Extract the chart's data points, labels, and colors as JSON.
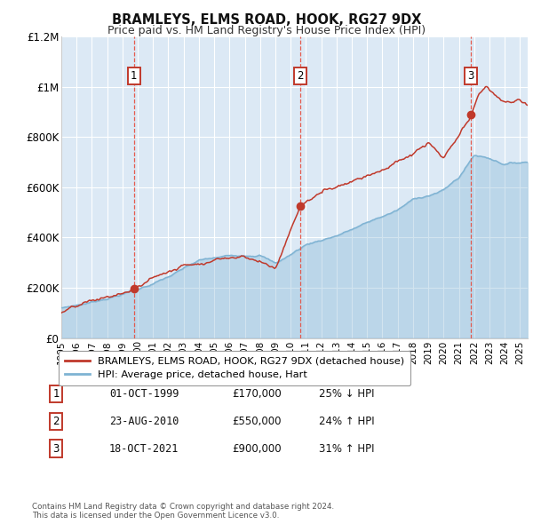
{
  "title": "BRAMLEYS, ELMS ROAD, HOOK, RG27 9DX",
  "subtitle": "Price paid vs. HM Land Registry's House Price Index (HPI)",
  "ylim": [
    0,
    1200000
  ],
  "yticks": [
    0,
    200000,
    400000,
    600000,
    800000,
    1000000,
    1200000
  ],
  "ytick_labels": [
    "£0",
    "£200K",
    "£400K",
    "£600K",
    "£800K",
    "£1M",
    "£1.2M"
  ],
  "background_color": "#ffffff",
  "plot_bg_color": "#dce9f5",
  "grid_color": "#ffffff",
  "sale_color": "#c0392b",
  "hpi_color": "#7fb3d3",
  "sale_label": "BRAMLEYS, ELMS ROAD, HOOK, RG27 9DX (detached house)",
  "hpi_label": "HPI: Average price, detached house, Hart",
  "transactions": [
    {
      "num": 1,
      "date": "01-OCT-1999",
      "price": 170000,
      "pct": "25%",
      "dir": "↓",
      "year_x": 1999.75
    },
    {
      "num": 2,
      "date": "23-AUG-2010",
      "price": 550000,
      "pct": "24%",
      "dir": "↑",
      "year_x": 2010.64
    },
    {
      "num": 3,
      "date": "18-OCT-2021",
      "price": 900000,
      "pct": "31%",
      "dir": "↑",
      "year_x": 2021.79
    }
  ],
  "footer": "Contains HM Land Registry data © Crown copyright and database right 2024.\nThis data is licensed under the Open Government Licence v3.0.",
  "xmin": 1995.0,
  "xmax": 2025.5,
  "xtick_years": [
    1995,
    1996,
    1997,
    1998,
    1999,
    2000,
    2001,
    2002,
    2003,
    2004,
    2005,
    2006,
    2007,
    2008,
    2009,
    2010,
    2011,
    2012,
    2013,
    2014,
    2015,
    2016,
    2017,
    2018,
    2019,
    2020,
    2021,
    2022,
    2023,
    2024,
    2025
  ]
}
